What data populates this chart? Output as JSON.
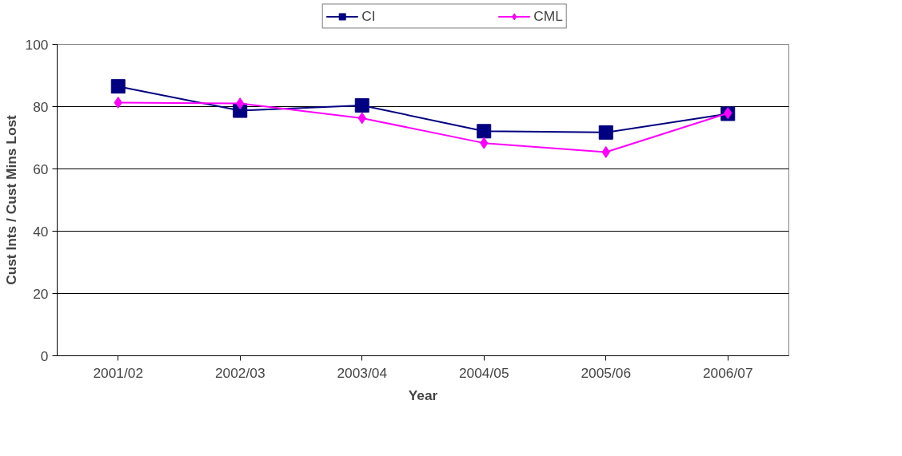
{
  "chart_data": {
    "type": "line",
    "xlabel": "Year",
    "ylabel": "Cust Ints / Cust Mins Lost",
    "categories": [
      "2001/02",
      "2002/03",
      "2003/04",
      "2004/05",
      "2005/06",
      "2006/07"
    ],
    "series": [
      {
        "name": "CI",
        "color": "#000080",
        "marker": "square",
        "values": [
          86.5,
          78.7,
          80.4,
          72.1,
          71.7,
          77.7
        ]
      },
      {
        "name": "CML",
        "color": "#ff00ff",
        "marker": "diamond",
        "values": [
          81.3,
          81.0,
          76.3,
          68.3,
          65.4,
          77.9
        ]
      }
    ],
    "ylim": [
      0,
      100
    ],
    "yticks": [
      0,
      20,
      40,
      60,
      80,
      100
    ],
    "grid": "y",
    "legend": "top",
    "line_style": "solid"
  }
}
